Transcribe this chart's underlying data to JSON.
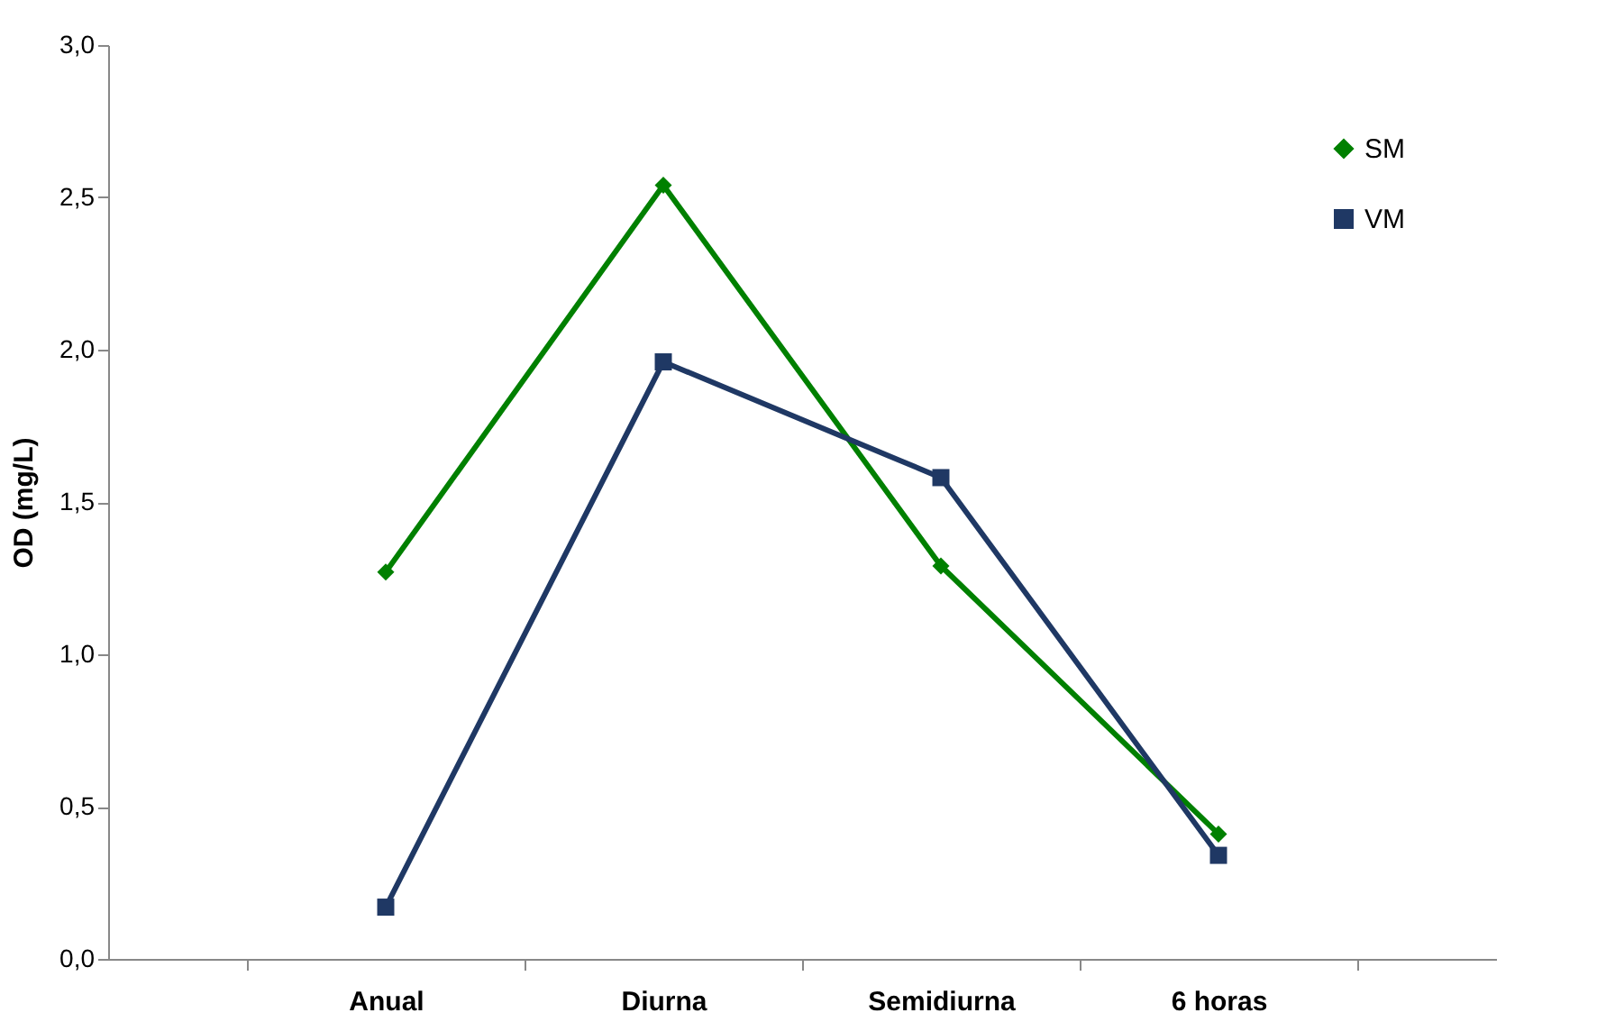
{
  "chart_data": {
    "type": "line",
    "ylabel": "OD  (mg/L)",
    "categories": [
      "Anual",
      "Diurna",
      "Semidiurna",
      "6 horas"
    ],
    "series": [
      {
        "name": "SM",
        "color": "#008000",
        "marker": "diamond",
        "values": [
          1.27,
          2.54,
          1.29,
          0.41
        ]
      },
      {
        "name": "VM",
        "color": "#1f3864",
        "marker": "square",
        "values": [
          0.17,
          1.96,
          1.58,
          0.34
        ]
      }
    ],
    "ylim": [
      0,
      3
    ],
    "yticks": [
      {
        "value": 0,
        "label": "0,0"
      },
      {
        "value": 0.5,
        "label": "0,5"
      },
      {
        "value": 1,
        "label": "1,0"
      },
      {
        "value": 1.5,
        "label": "1,5"
      },
      {
        "value": 2,
        "label": "2,0"
      },
      {
        "value": 2.5,
        "label": "2,5"
      },
      {
        "value": 3,
        "label": "3,0"
      }
    ],
    "grid": false,
    "legend": "top right"
  }
}
